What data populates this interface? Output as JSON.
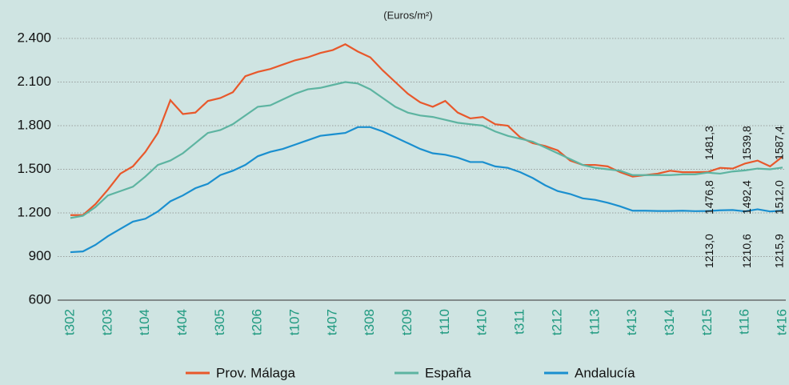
{
  "chart_data": {
    "type": "line",
    "subtitle": "(Euros/m²)",
    "categories": [
      "t302",
      null,
      null,
      "t203",
      null,
      null,
      "t104",
      null,
      null,
      "t404",
      null,
      null,
      "t305",
      null,
      null,
      "t206",
      null,
      null,
      "t107",
      null,
      null,
      "t407",
      null,
      null,
      "t308",
      null,
      null,
      "t209",
      null,
      null,
      "t110",
      null,
      null,
      "t410",
      null,
      null,
      "t311",
      null,
      null,
      "t212",
      null,
      null,
      "t113",
      null,
      null,
      "t413",
      null,
      null,
      "t314",
      null,
      null,
      "t215",
      null,
      null,
      "t116",
      null,
      null,
      "t416"
    ],
    "series": [
      {
        "name": "Prov. Málaga",
        "color": "#e8582b",
        "values": [
          1185,
          1185,
          1260,
          1360,
          1470,
          1520,
          1620,
          1750,
          1975,
          1880,
          1890,
          1970,
          1990,
          2030,
          2140,
          2170,
          2190,
          2220,
          2250,
          2270,
          2300,
          2320,
          2360,
          2310,
          2270,
          2180,
          2100,
          2020,
          1960,
          1930,
          1970,
          1890,
          1850,
          1860,
          1810,
          1800,
          1720,
          1680,
          1660,
          1630,
          1560,
          1530,
          1530,
          1520,
          1480,
          1450,
          1460,
          1470,
          1490,
          1480,
          1480,
          1481.3,
          1510,
          1505,
          1539.8,
          1560,
          1520,
          1587.4
        ],
        "labeled_indices": [
          51,
          54,
          57
        ],
        "value_labels": {
          "51": "1481,3",
          "54": "1539,8",
          "57": "1587,4"
        }
      },
      {
        "name": "España",
        "color": "#5db4a1",
        "values": [
          1165,
          1180,
          1240,
          1320,
          1350,
          1380,
          1450,
          1530,
          1560,
          1610,
          1680,
          1750,
          1770,
          1810,
          1870,
          1930,
          1940,
          1980,
          2020,
          2050,
          2060,
          2080,
          2100,
          2090,
          2050,
          1990,
          1930,
          1890,
          1870,
          1860,
          1840,
          1820,
          1810,
          1800,
          1760,
          1730,
          1710,
          1690,
          1650,
          1610,
          1570,
          1530,
          1510,
          1500,
          1490,
          1460,
          1460,
          1460,
          1460,
          1465,
          1465,
          1476.8,
          1470,
          1485,
          1492.4,
          1505,
          1500,
          1512.0
        ],
        "labeled_indices": [
          51,
          54,
          57
        ],
        "value_labels": {
          "51": "1476,8",
          "54": "1492,4",
          "57": "1512,0"
        }
      },
      {
        "name": "Andalucía",
        "color": "#1a8fcf",
        "values": [
          930,
          935,
          980,
          1040,
          1090,
          1140,
          1160,
          1210,
          1280,
          1320,
          1370,
          1400,
          1460,
          1490,
          1530,
          1590,
          1620,
          1640,
          1670,
          1700,
          1730,
          1740,
          1750,
          1790,
          1790,
          1760,
          1720,
          1680,
          1640,
          1610,
          1600,
          1580,
          1550,
          1550,
          1520,
          1510,
          1480,
          1440,
          1390,
          1350,
          1330,
          1300,
          1290,
          1270,
          1245,
          1215,
          1215,
          1213,
          1213,
          1215,
          1212,
          1213.0,
          1218,
          1220,
          1210.6,
          1225,
          1210,
          1215.9
        ],
        "labeled_indices": [
          51,
          54,
          57
        ],
        "value_labels": {
          "51": "1213,0",
          "54": "1210,6",
          "57": "1215,9"
        }
      }
    ],
    "ylim": [
      600,
      2400
    ],
    "yticks": [
      600,
      900,
      {
        "value": 1200,
        "label": "1.200"
      },
      {
        "value": 1500,
        "label": "1.500"
      },
      {
        "value": 1800,
        "label": "1.800"
      },
      {
        "value": 2100,
        "label": "2.100"
      },
      {
        "value": 2400,
        "label": "2.400"
      }
    ],
    "grid": true,
    "legend": "bottom"
  }
}
